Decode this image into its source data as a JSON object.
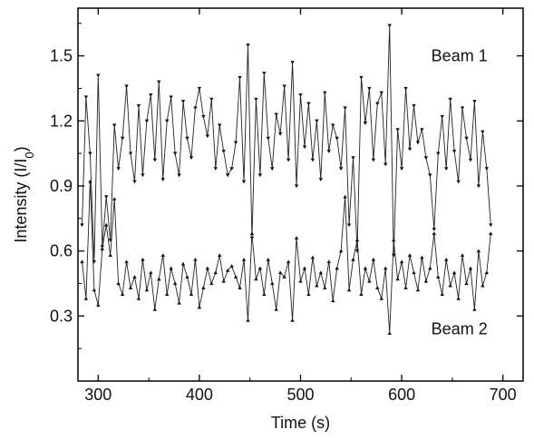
{
  "chart_data": {
    "type": "line",
    "xlabel": "Time (s)",
    "ylabel_main": "Intensity (I/I",
    "ylabel_sub": "0",
    "ylabel_tail": ")",
    "xlim": [
      280,
      720
    ],
    "ylim": [
      0.0,
      1.72
    ],
    "x_ticks": [
      300,
      400,
      500,
      600,
      700
    ],
    "x_tick_labels": [
      "300",
      "400",
      "500",
      "600",
      "700"
    ],
    "y_ticks": [
      0.3,
      0.6,
      0.9,
      1.2,
      1.5
    ],
    "y_tick_labels": [
      "0.3",
      "0.6",
      "0.9",
      "1.2",
      "1.5"
    ],
    "grid": false,
    "annotations": [
      {
        "text": "Beam 1",
        "x": 657,
        "y": 1.5
      },
      {
        "text": "Beam 2",
        "x": 657,
        "y": 0.24
      }
    ],
    "series": [
      {
        "marker": "triangle-down",
        "x": [
          284,
          288,
          292,
          296,
          300,
          304,
          308,
          312,
          316,
          320,
          324,
          328,
          332,
          336,
          340,
          344,
          348,
          352,
          356,
          360,
          364,
          368,
          372,
          376,
          380,
          384,
          388,
          392,
          396,
          400,
          404,
          408,
          412,
          416,
          420,
          424,
          428,
          432,
          436,
          440,
          444,
          448,
          452,
          456,
          460,
          464,
          468,
          472,
          476,
          480,
          484,
          488,
          492,
          496,
          500,
          504,
          508,
          512,
          516,
          520,
          524,
          528,
          532,
          536,
          540,
          544,
          548,
          552,
          556,
          560,
          564,
          568,
          572,
          576,
          580,
          584,
          588,
          592,
          596,
          600,
          604,
          608,
          612,
          616,
          620,
          624,
          628,
          632,
          636,
          640,
          644,
          648,
          652,
          656,
          660,
          664,
          668,
          672,
          676,
          680,
          684,
          688
        ],
        "y": [
          0.72,
          1.31,
          1.05,
          0.55,
          1.41,
          0.62,
          0.85,
          0.65,
          1.18,
          0.98,
          1.12,
          1.36,
          1.05,
          0.92,
          1.27,
          0.95,
          1.2,
          1.32,
          1.02,
          1.38,
          0.93,
          1.2,
          1.31,
          1.05,
          0.95,
          1.29,
          1.12,
          1.03,
          1.26,
          1.35,
          1.22,
          1.13,
          1.3,
          0.98,
          1.18,
          1.06,
          0.95,
          0.98,
          1.1,
          1.4,
          0.92,
          1.55,
          0.66,
          1.3,
          0.95,
          1.42,
          1.12,
          0.98,
          1.23,
          1.14,
          1.36,
          1.02,
          1.47,
          0.9,
          1.32,
          1.08,
          1.28,
          1.02,
          1.2,
          0.93,
          1.33,
          1.06,
          1.18,
          1.12,
          0.98,
          1.26,
          0.72,
          1.03,
          0.6,
          1.4,
          1.19,
          1.35,
          1.02,
          1.28,
          1.33,
          1.0,
          1.64,
          0.58,
          1.16,
          0.98,
          1.35,
          1.07,
          1.27,
          1.1,
          1.16,
          1.03,
          0.95,
          0.7,
          1.05,
          1.22,
          0.98,
          1.3,
          1.06,
          0.92,
          1.26,
          1.12,
          1.02,
          1.29,
          0.9,
          1.15,
          0.98,
          0.72
        ]
      },
      {
        "marker": "triangle-up",
        "x": [
          284,
          288,
          292,
          296,
          300,
          304,
          308,
          312,
          316,
          320,
          324,
          328,
          332,
          336,
          340,
          344,
          348,
          352,
          356,
          360,
          364,
          368,
          372,
          376,
          380,
          384,
          388,
          392,
          396,
          400,
          404,
          408,
          412,
          416,
          420,
          424,
          428,
          432,
          436,
          440,
          444,
          448,
          452,
          456,
          460,
          464,
          468,
          472,
          476,
          480,
          484,
          488,
          492,
          496,
          500,
          504,
          508,
          512,
          516,
          520,
          524,
          528,
          532,
          536,
          540,
          544,
          548,
          552,
          556,
          560,
          564,
          568,
          572,
          576,
          580,
          584,
          588,
          592,
          596,
          600,
          604,
          608,
          612,
          616,
          620,
          624,
          628,
          632,
          636,
          640,
          644,
          648,
          652,
          656,
          660,
          664,
          668,
          672,
          676,
          680,
          684,
          688
        ],
        "y": [
          0.55,
          0.38,
          0.92,
          0.42,
          0.35,
          0.61,
          0.72,
          0.58,
          0.84,
          0.45,
          0.4,
          0.55,
          0.43,
          0.48,
          0.38,
          0.56,
          0.42,
          0.5,
          0.33,
          0.47,
          0.58,
          0.4,
          0.52,
          0.45,
          0.36,
          0.54,
          0.48,
          0.4,
          0.56,
          0.34,
          0.43,
          0.52,
          0.45,
          0.5,
          0.58,
          0.46,
          0.51,
          0.53,
          0.48,
          0.43,
          0.56,
          0.28,
          0.68,
          0.47,
          0.52,
          0.4,
          0.56,
          0.45,
          0.33,
          0.5,
          0.48,
          0.55,
          0.28,
          0.66,
          0.46,
          0.52,
          0.4,
          0.57,
          0.44,
          0.5,
          0.43,
          0.55,
          0.37,
          0.52,
          0.6,
          0.85,
          0.42,
          0.56,
          0.65,
          0.4,
          0.52,
          0.46,
          0.56,
          0.43,
          0.38,
          0.52,
          0.22,
          0.65,
          0.47,
          0.55,
          0.43,
          0.58,
          0.5,
          0.42,
          0.57,
          0.46,
          0.52,
          0.68,
          0.48,
          0.4,
          0.56,
          0.44,
          0.5,
          0.38,
          0.58,
          0.45,
          0.52,
          0.33,
          0.6,
          0.44,
          0.5,
          0.68
        ]
      }
    ]
  }
}
